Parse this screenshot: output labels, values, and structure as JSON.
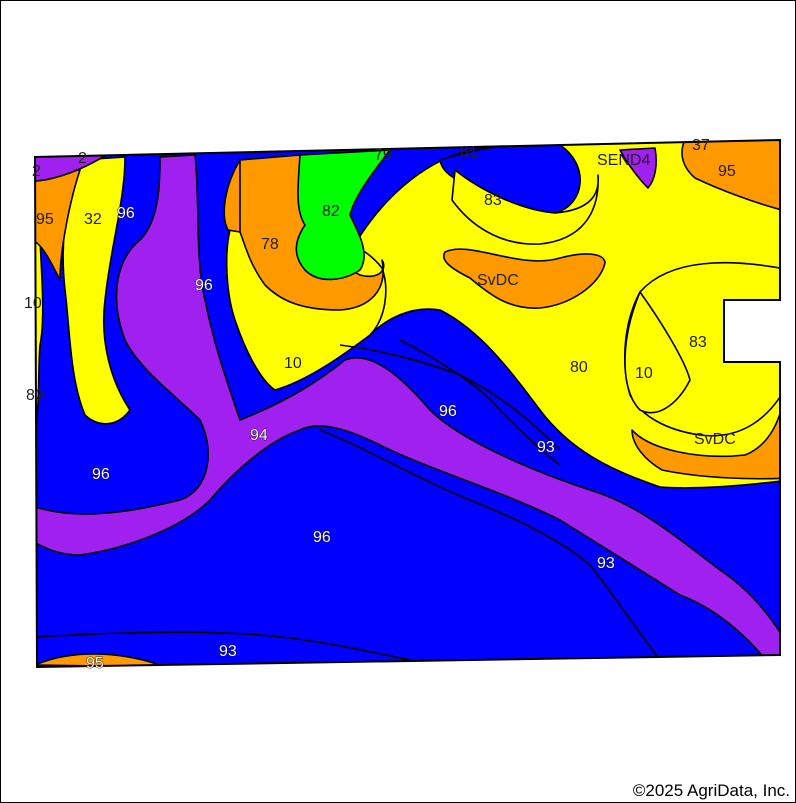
{
  "map": {
    "colors": {
      "blue": "#0000FF",
      "purple": "#A020F0",
      "yellow": "#FFFF00",
      "orange": "#FF9900",
      "green": "#00FF00",
      "outline": "#000000"
    },
    "labels": {
      "l_2a": "2",
      "l_2b": "2",
      "l_79": "79",
      "l_81": "81",
      "l_37": "37",
      "l_send4": "SEND4",
      "l_95a": "95",
      "l_95b": "95",
      "l_32": "32",
      "l_96a": "96",
      "l_82": "82",
      "l_83a": "83",
      "l_78": "78",
      "l_96b": "96",
      "l_svdc_a": "SvDC",
      "l_10a": "10",
      "l_83b": "83",
      "l_10b": "10",
      "l_80a": "80",
      "l_10c": "10",
      "l_80b": "80",
      "l_96c": "96",
      "l_94": "94",
      "l_93a": "93",
      "l_svdc_b": "SvDC",
      "l_96d": "96",
      "l_96e": "96",
      "l_93b": "93",
      "l_93c": "93",
      "l_95c": "95"
    }
  },
  "copyright": "©2025 AgriData, Inc."
}
